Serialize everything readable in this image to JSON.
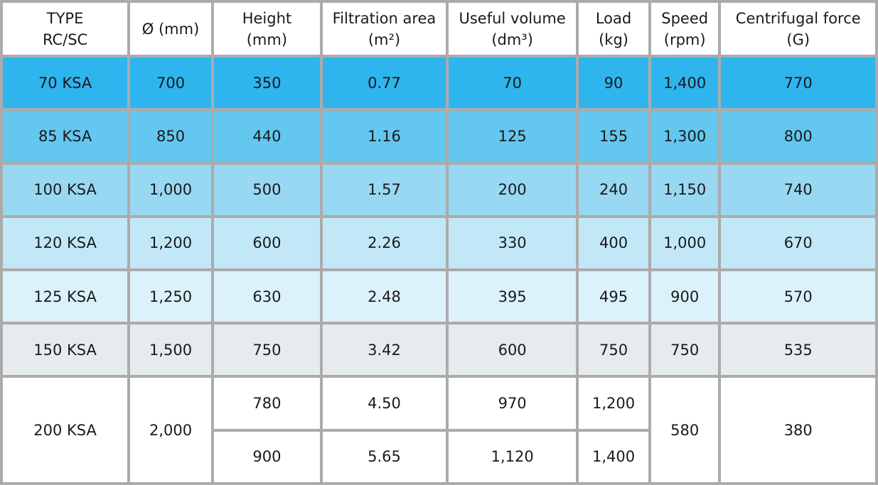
{
  "headers": [
    {
      "line1": "TYPE",
      "line2": "RC/SC"
    },
    {
      "line1": "Ø (mm)",
      "line2": ""
    },
    {
      "line1": "Height",
      "line2": "(mm)"
    },
    {
      "line1": "Filtration area",
      "line2": "(m²)"
    },
    {
      "line1": "Useful volume",
      "line2": "(dm³)"
    },
    {
      "line1": "Load",
      "line2": "(kg)"
    },
    {
      "line1": "Speed",
      "line2": "(rpm)"
    },
    {
      "line1": "Centrifugal force",
      "line2": "(G)"
    }
  ],
  "rows": [
    [
      "70 KSA",
      "700",
      "350",
      "0.77",
      "70",
      "90",
      "1,400",
      "770"
    ],
    [
      "85 KSA",
      "850",
      "440",
      "1.16",
      "125",
      "155",
      "1,300",
      "800"
    ],
    [
      "100 KSA",
      "1,000",
      "500",
      "1.57",
      "200",
      "240",
      "1,150",
      "740"
    ],
    [
      "120 KSA",
      "1,200",
      "600",
      "2.26",
      "330",
      "400",
      "1,000",
      "670"
    ],
    [
      "125 KSA",
      "1,250",
      "630",
      "2.48",
      "395",
      "495",
      "900",
      "570"
    ],
    [
      "150 KSA",
      "1,500",
      "750",
      "3.42",
      "600",
      "750",
      "750",
      "535"
    ]
  ],
  "last_group": {
    "type": "200 KSA",
    "diameter": "2,000",
    "speed": "580",
    "centrifugal_force": "380",
    "sub_rows": [
      {
        "height": "780",
        "filtration_area": "4.50",
        "useful_volume": "970",
        "load": "1,200"
      },
      {
        "height": "900",
        "filtration_area": "5.65",
        "useful_volume": "1,120",
        "load": "1,400"
      }
    ]
  },
  "colors": {
    "row1": "#2fb5ee",
    "row2": "#63c7ef",
    "row3": "#98d8f3",
    "row4": "#c2e8f8",
    "row5": "#dcf2fb",
    "row6": "#e6ecee",
    "grid": "#ababab"
  }
}
